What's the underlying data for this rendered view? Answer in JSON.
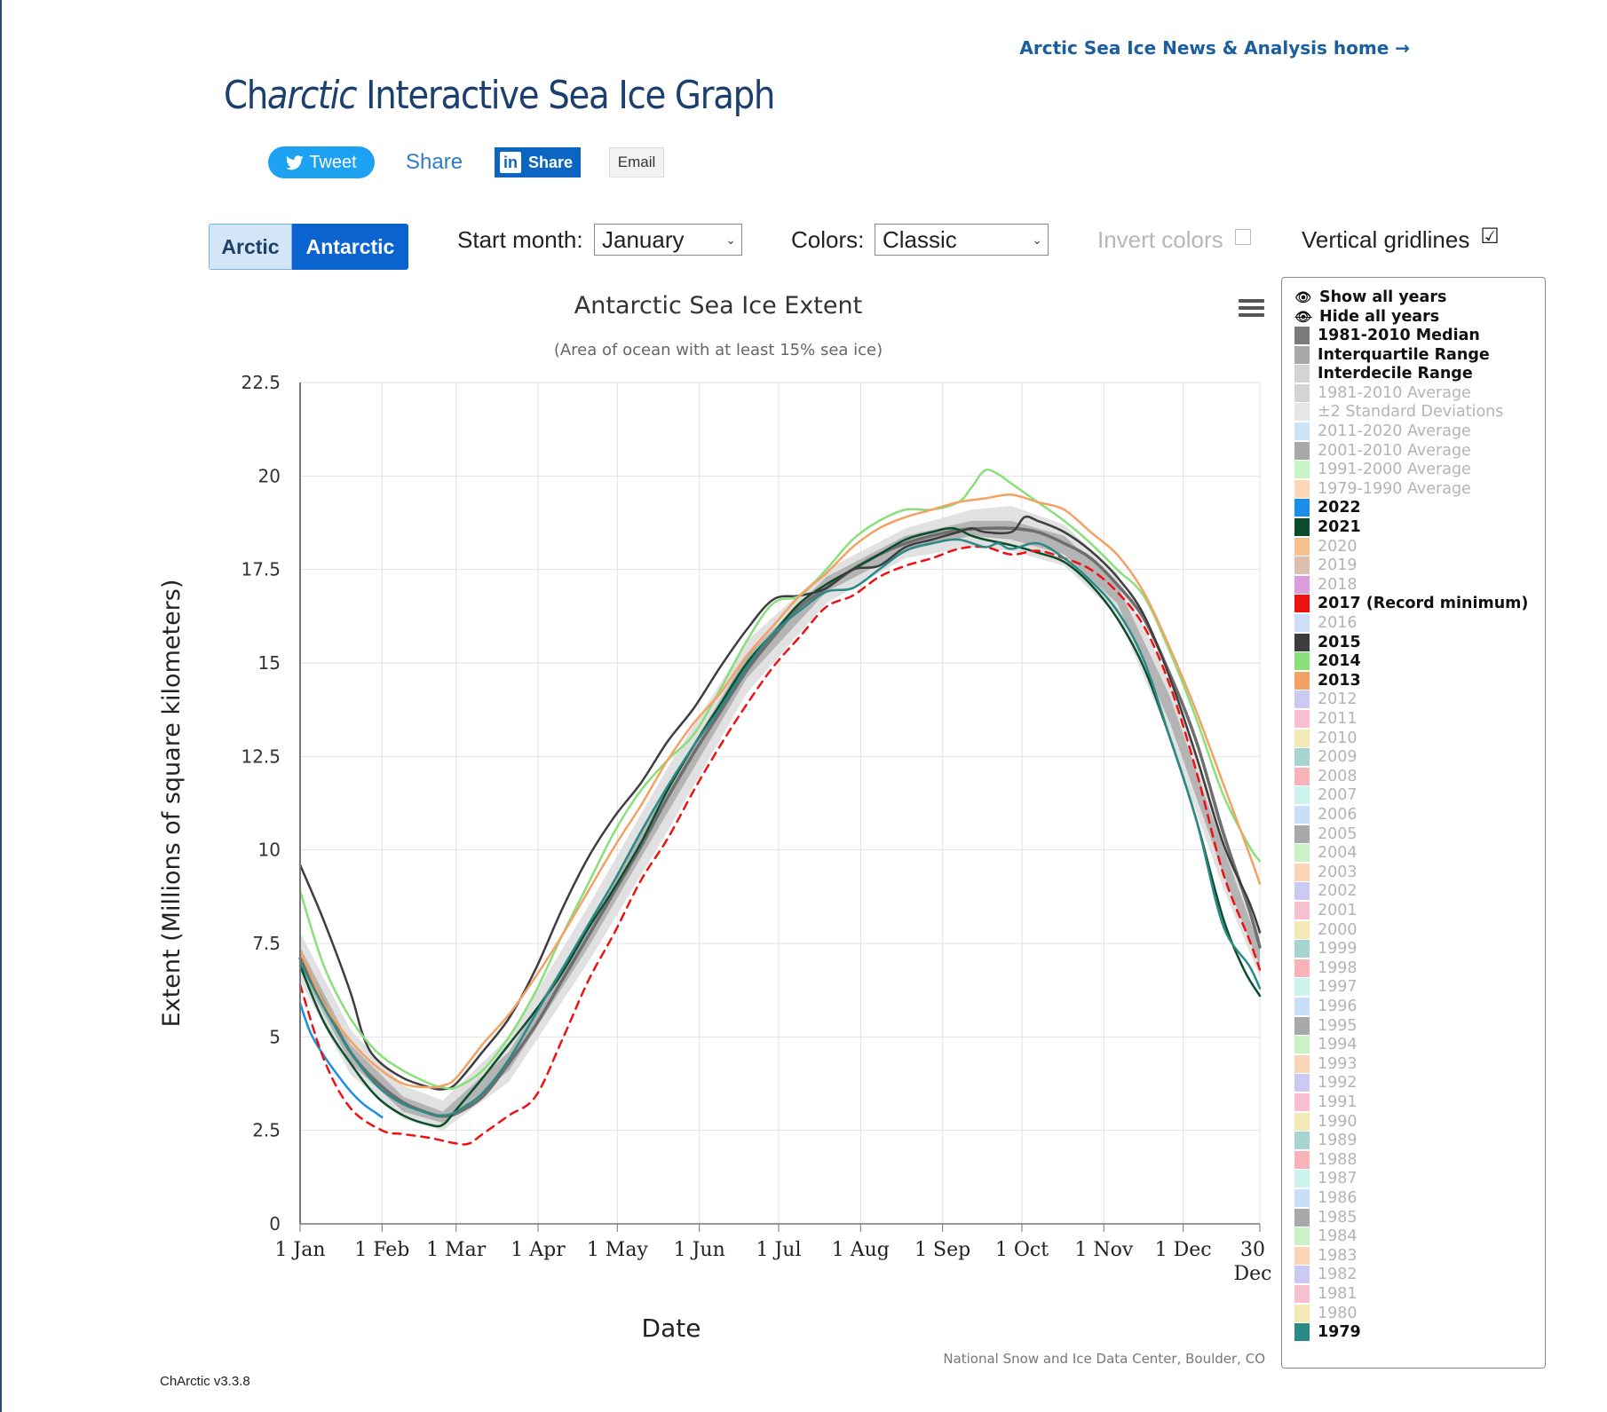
{
  "header": {
    "home_link": "Arctic Sea Ice News & Analysis home →",
    "title_prefix": "Ch",
    "title_italic": "arctic",
    "title_suffix": " Interactive Sea Ice Graph"
  },
  "share": {
    "tweet": "Tweet",
    "facebook": "Share",
    "linkedin": "Share",
    "linkedin_logo": "in",
    "email": "Email"
  },
  "controls": {
    "hemisphere_arctic": "Arctic",
    "hemisphere_antarctic": "Antarctic",
    "start_month_label": "Start month:",
    "start_month_value": "January",
    "colors_label": "Colors:",
    "colors_value": "Classic",
    "invert_label": "Invert colors",
    "gridlines_label": "Vertical gridlines",
    "gridlines_checked": "☑"
  },
  "legend": {
    "show_all": "Show all years",
    "hide_all": "Hide all years",
    "items": [
      {
        "label": "1981-2010 Median",
        "color": "#7a7a7a",
        "active": true
      },
      {
        "label": "Interquartile Range",
        "color": "#a8a8a8",
        "active": true
      },
      {
        "label": "Interdecile Range",
        "color": "#d4d4d4",
        "active": true
      },
      {
        "label": "1981-2010 Average",
        "color": "#d4d4d4",
        "active": false
      },
      {
        "label": "±2 Standard Deviations",
        "color": "#e6e6e6",
        "active": false
      },
      {
        "label": "2011-2020 Average",
        "color": "#cfe3f8",
        "active": false
      },
      {
        "label": "2001-2010 Average",
        "color": "#a8a8a8",
        "active": false
      },
      {
        "label": "1991-2000 Average",
        "color": "#c9f5c6",
        "active": false
      },
      {
        "label": "1979-1990 Average",
        "color": "#fbd7b8",
        "active": false
      },
      {
        "label": "2022",
        "color": "#1b8ee8",
        "active": true
      },
      {
        "label": "2021",
        "color": "#0b4d2a",
        "active": true
      },
      {
        "label": "2020",
        "color": "#f6c08f",
        "active": false
      },
      {
        "label": "2019",
        "color": "#dcc0ad",
        "active": false
      },
      {
        "label": "2018",
        "color": "#dd9ddc",
        "active": false
      },
      {
        "label": "2017 (Record minimum)",
        "color": "#ee1111",
        "active": true
      },
      {
        "label": "2016",
        "color": "#cfdef8",
        "active": false
      },
      {
        "label": "2015",
        "color": "#3d3d40",
        "active": true
      },
      {
        "label": "2014",
        "color": "#89e07a",
        "active": true
      },
      {
        "label": "2013",
        "color": "#f4a164",
        "active": true
      },
      {
        "label": "2012",
        "color": "#cbcaf2",
        "active": false
      },
      {
        "label": "2011",
        "color": "#f8bfd0",
        "active": false
      },
      {
        "label": "2010",
        "color": "#f2e9b4",
        "active": false
      },
      {
        "label": "2009",
        "color": "#a7d4d0",
        "active": false
      },
      {
        "label": "2008",
        "color": "#f8b3b8",
        "active": false
      },
      {
        "label": "2007",
        "color": "#cbf4ef",
        "active": false
      },
      {
        "label": "2006",
        "color": "#c9def8",
        "active": false
      },
      {
        "label": "2005",
        "color": "#a9a9ab",
        "active": false
      },
      {
        "label": "2004",
        "color": "#caf2c4",
        "active": false
      },
      {
        "label": "2003",
        "color": "#fad5b8",
        "active": false
      },
      {
        "label": "2002",
        "color": "#cbcaf2",
        "active": false
      },
      {
        "label": "2001",
        "color": "#f8bfd0",
        "active": false
      },
      {
        "label": "2000",
        "color": "#f2e9b4",
        "active": false
      },
      {
        "label": "1999",
        "color": "#a7d4d0",
        "active": false
      },
      {
        "label": "1998",
        "color": "#f8b3b8",
        "active": false
      },
      {
        "label": "1997",
        "color": "#cbf4ef",
        "active": false
      },
      {
        "label": "1996",
        "color": "#c9def8",
        "active": false
      },
      {
        "label": "1995",
        "color": "#a9a9ab",
        "active": false
      },
      {
        "label": "1994",
        "color": "#caf2c4",
        "active": false
      },
      {
        "label": "1993",
        "color": "#fad5b8",
        "active": false
      },
      {
        "label": "1992",
        "color": "#cbcaf2",
        "active": false
      },
      {
        "label": "1991",
        "color": "#f8bfd0",
        "active": false
      },
      {
        "label": "1990",
        "color": "#f2e9b4",
        "active": false
      },
      {
        "label": "1989",
        "color": "#a7d4d0",
        "active": false
      },
      {
        "label": "1988",
        "color": "#f8b3b8",
        "active": false
      },
      {
        "label": "1987",
        "color": "#cbf4ef",
        "active": false
      },
      {
        "label": "1986",
        "color": "#c9def8",
        "active": false
      },
      {
        "label": "1985",
        "color": "#a9a9ab",
        "active": false
      },
      {
        "label": "1984",
        "color": "#caf2c4",
        "active": false
      },
      {
        "label": "1983",
        "color": "#fad5b8",
        "active": false
      },
      {
        "label": "1982",
        "color": "#cbcaf2",
        "active": false
      },
      {
        "label": "1981",
        "color": "#f8bfd0",
        "active": false
      },
      {
        "label": "1980",
        "color": "#f2e9b4",
        "active": false
      },
      {
        "label": "1979",
        "color": "#2a8a85",
        "active": true
      }
    ]
  },
  "chart_data": {
    "type": "line",
    "title": "Antarctic Sea Ice Extent",
    "subtitle": "(Area of ocean with at least 15% sea ice)",
    "xlabel": "Date",
    "ylabel": "Extent (Millions of square kilometers)",
    "credit": "National Snow and Ice Data Center, Boulder, CO",
    "menu_icon": "hamburger-menu-icon",
    "x_unit": "day-of-year",
    "xlim": [
      1,
      364
    ],
    "ylim": [
      0,
      22.5
    ],
    "y_ticks": [
      0,
      2.5,
      5,
      7.5,
      10,
      12.5,
      15,
      17.5,
      20,
      22.5
    ],
    "y_tick_labels": [
      "0",
      "2.5",
      "5",
      "7.5",
      "10",
      "12.5",
      "15",
      "17.5",
      "20",
      "22.5"
    ],
    "x_ticks": [
      {
        "day": 1,
        "label": "1 Jan"
      },
      {
        "day": 32,
        "label": "1 Feb"
      },
      {
        "day": 60,
        "label": "1 Mar"
      },
      {
        "day": 91,
        "label": "1 Apr"
      },
      {
        "day": 121,
        "label": "1 May"
      },
      {
        "day": 152,
        "label": "1 Jun"
      },
      {
        "day": 182,
        "label": "1 Jul"
      },
      {
        "day": 213,
        "label": "1 Aug"
      },
      {
        "day": 244,
        "label": "1 Sep"
      },
      {
        "day": 274,
        "label": "1 Oct"
      },
      {
        "day": 305,
        "label": "1 Nov"
      },
      {
        "day": 335,
        "label": "1 Dec"
      },
      {
        "day": 364,
        "label": "30 Dec"
      }
    ],
    "vertical_gridlines": true,
    "bands": [
      {
        "name": "Interdecile Range",
        "color": "#dcdcdc",
        "x": [
          1,
          20,
          40,
          55,
          80,
          110,
          140,
          170,
          200,
          230,
          255,
          270,
          290,
          310,
          330,
          350,
          364
        ],
        "lower": [
          6.5,
          4.0,
          2.8,
          2.5,
          3.8,
          7.0,
          10.5,
          14.2,
          16.6,
          17.8,
          18.1,
          18.0,
          17.6,
          16.3,
          13.0,
          9.0,
          6.6
        ],
        "upper": [
          7.8,
          5.2,
          3.7,
          3.3,
          5.0,
          8.5,
          12.2,
          15.6,
          17.5,
          18.6,
          19.1,
          19.2,
          18.7,
          17.4,
          14.5,
          10.5,
          7.8
        ]
      },
      {
        "name": "Interquartile Range",
        "color": "#ababab",
        "x": [
          1,
          20,
          40,
          55,
          80,
          110,
          140,
          170,
          200,
          230,
          255,
          270,
          290,
          310,
          330,
          350,
          364
        ],
        "lower": [
          6.8,
          4.3,
          3.0,
          2.7,
          4.1,
          7.4,
          11.0,
          14.6,
          16.9,
          18.0,
          18.4,
          18.3,
          17.9,
          16.6,
          13.4,
          9.4,
          6.9
        ],
        "upper": [
          7.4,
          4.8,
          3.4,
          3.0,
          4.6,
          8.0,
          11.7,
          15.2,
          17.3,
          18.4,
          18.8,
          18.8,
          18.4,
          17.1,
          14.1,
          10.1,
          7.4
        ]
      }
    ],
    "series": [
      {
        "name": "1981-2010 Median",
        "color": "#6e6e6e",
        "width": 3.5,
        "dash": false,
        "x": [
          1,
          10,
          20,
          30,
          40,
          50,
          55,
          60,
          70,
          80,
          90,
          100,
          110,
          120,
          130,
          140,
          150,
          160,
          170,
          180,
          190,
          200,
          210,
          220,
          230,
          240,
          250,
          260,
          270,
          280,
          290,
          300,
          310,
          320,
          330,
          340,
          350,
          360,
          364
        ],
        "y": [
          7.1,
          5.9,
          4.6,
          3.8,
          3.25,
          2.95,
          2.88,
          2.95,
          3.4,
          4.3,
          5.3,
          6.5,
          7.7,
          8.9,
          10.1,
          11.4,
          12.6,
          13.7,
          14.8,
          15.7,
          16.5,
          17.0,
          17.5,
          17.9,
          18.2,
          18.4,
          18.55,
          18.6,
          18.6,
          18.5,
          18.2,
          17.8,
          17.1,
          16.2,
          14.7,
          12.9,
          10.5,
          8.4,
          7.4
        ]
      },
      {
        "name": "2022",
        "color": "#1b8ee8",
        "width": 2.5,
        "dash": false,
        "x": [
          1,
          5,
          10,
          15,
          20,
          25,
          30,
          32
        ],
        "y": [
          5.9,
          5.1,
          4.5,
          4.0,
          3.55,
          3.2,
          2.95,
          2.85
        ]
      },
      {
        "name": "2021",
        "color": "#0b4d2a",
        "width": 2.5,
        "dash": false,
        "x": [
          1,
          10,
          20,
          30,
          40,
          50,
          55,
          60,
          70,
          80,
          90,
          100,
          110,
          120,
          130,
          140,
          150,
          160,
          170,
          180,
          190,
          200,
          210,
          220,
          230,
          240,
          248,
          255,
          260,
          270,
          280,
          290,
          300,
          310,
          320,
          330,
          340,
          350,
          358,
          364
        ],
        "y": [
          6.9,
          5.4,
          4.3,
          3.4,
          2.9,
          2.65,
          2.65,
          3.05,
          3.9,
          4.8,
          5.7,
          6.7,
          7.9,
          9.0,
          10.2,
          11.6,
          12.8,
          13.9,
          15.0,
          15.8,
          16.6,
          17.1,
          17.5,
          17.9,
          18.3,
          18.5,
          18.6,
          18.4,
          18.3,
          18.15,
          17.95,
          17.7,
          17.1,
          16.2,
          14.9,
          13.0,
          10.8,
          8.2,
          6.8,
          6.1
        ]
      },
      {
        "name": "2017 (Record minimum)",
        "color": "#ee1111",
        "width": 2.5,
        "dash": true,
        "x": [
          1,
          10,
          20,
          32,
          40,
          50,
          60,
          65,
          70,
          80,
          90,
          100,
          110,
          120,
          130,
          140,
          150,
          160,
          170,
          180,
          190,
          200,
          210,
          220,
          230,
          240,
          250,
          260,
          270,
          280,
          290,
          300,
          310,
          320,
          330,
          340,
          350,
          360,
          364
        ],
        "y": [
          6.4,
          4.4,
          3.1,
          2.5,
          2.4,
          2.3,
          2.15,
          2.15,
          2.4,
          2.9,
          3.4,
          4.9,
          6.5,
          7.8,
          9.2,
          10.3,
          11.6,
          12.8,
          13.9,
          14.9,
          15.7,
          16.5,
          16.8,
          17.3,
          17.6,
          17.8,
          18.05,
          18.1,
          17.9,
          18.0,
          17.8,
          17.5,
          16.9,
          16.0,
          14.4,
          12.1,
          9.4,
          7.6,
          6.8
        ]
      },
      {
        "name": "2015",
        "color": "#3d3d40",
        "width": 2.5,
        "dash": false,
        "x": [
          1,
          10,
          20,
          25,
          30,
          40,
          50,
          55,
          60,
          70,
          80,
          90,
          100,
          110,
          120,
          130,
          140,
          150,
          160,
          170,
          180,
          190,
          200,
          210,
          220,
          230,
          240,
          250,
          255,
          260,
          270,
          275,
          280,
          290,
          300,
          310,
          320,
          330,
          340,
          350,
          360,
          364
        ],
        "y": [
          9.6,
          8.1,
          6.2,
          5.0,
          4.4,
          3.9,
          3.65,
          3.6,
          3.75,
          4.6,
          5.5,
          6.8,
          8.4,
          9.8,
          10.9,
          11.8,
          12.9,
          13.8,
          14.9,
          15.9,
          16.7,
          16.8,
          17.0,
          17.5,
          17.6,
          18.1,
          18.3,
          18.5,
          18.6,
          18.5,
          18.5,
          18.9,
          18.8,
          18.5,
          18.0,
          17.3,
          16.3,
          14.6,
          12.5,
          10.2,
          8.6,
          7.8
        ]
      },
      {
        "name": "2014",
        "color": "#89e07a",
        "width": 2.5,
        "dash": false,
        "x": [
          1,
          10,
          20,
          30,
          40,
          50,
          55,
          60,
          70,
          80,
          90,
          100,
          110,
          120,
          130,
          140,
          150,
          160,
          170,
          180,
          190,
          200,
          210,
          220,
          230,
          240,
          250,
          255,
          260,
          265,
          270,
          280,
          290,
          300,
          310,
          320,
          330,
          340,
          350,
          360,
          364
        ],
        "y": [
          8.9,
          6.9,
          5.5,
          4.6,
          4.1,
          3.75,
          3.65,
          3.65,
          4.1,
          5.0,
          6.2,
          7.7,
          9.1,
          10.5,
          11.6,
          12.4,
          13.1,
          14.3,
          15.6,
          16.6,
          16.8,
          17.5,
          18.3,
          18.8,
          19.1,
          19.1,
          19.3,
          19.7,
          20.15,
          20.05,
          19.8,
          19.3,
          18.8,
          18.2,
          17.5,
          16.8,
          15.3,
          13.5,
          11.5,
          10.1,
          9.7
        ]
      },
      {
        "name": "2013",
        "color": "#f4a164",
        "width": 2.5,
        "dash": false,
        "x": [
          1,
          10,
          20,
          30,
          40,
          50,
          55,
          60,
          70,
          80,
          90,
          100,
          110,
          120,
          130,
          140,
          150,
          160,
          170,
          180,
          190,
          200,
          210,
          220,
          230,
          240,
          250,
          260,
          270,
          280,
          290,
          300,
          310,
          320,
          330,
          340,
          350,
          360,
          364
        ],
        "y": [
          7.3,
          5.9,
          4.9,
          4.2,
          3.75,
          3.65,
          3.7,
          3.9,
          4.8,
          5.6,
          6.6,
          7.7,
          8.9,
          10.1,
          11.2,
          12.4,
          13.4,
          14.2,
          15.2,
          16.0,
          16.8,
          17.4,
          18.1,
          18.6,
          18.9,
          19.1,
          19.3,
          19.4,
          19.5,
          19.3,
          19.1,
          18.5,
          17.9,
          16.9,
          15.4,
          13.7,
          11.8,
          9.9,
          9.1
        ]
      },
      {
        "name": "1979",
        "color": "#2a8a85",
        "width": 2.5,
        "dash": false,
        "x": [
          1,
          10,
          20,
          30,
          40,
          50,
          55,
          60,
          70,
          80,
          90,
          100,
          110,
          120,
          130,
          140,
          150,
          160,
          170,
          180,
          190,
          200,
          210,
          220,
          230,
          240,
          250,
          260,
          265,
          270,
          280,
          290,
          300,
          310,
          320,
          330,
          340,
          350,
          360,
          364
        ],
        "y": [
          7.0,
          5.8,
          4.6,
          3.7,
          3.2,
          2.95,
          2.9,
          3.0,
          3.5,
          4.4,
          5.6,
          6.8,
          8.0,
          9.2,
          10.5,
          11.7,
          12.8,
          13.8,
          14.9,
          15.8,
          16.4,
          16.9,
          17.0,
          17.5,
          18.0,
          18.2,
          18.3,
          18.1,
          18.2,
          18.05,
          18.2,
          17.8,
          17.2,
          16.4,
          15.1,
          13.0,
          10.8,
          8.0,
          6.9,
          6.3
        ]
      }
    ]
  },
  "footer": {
    "version": "ChArctic v3.3.8"
  }
}
